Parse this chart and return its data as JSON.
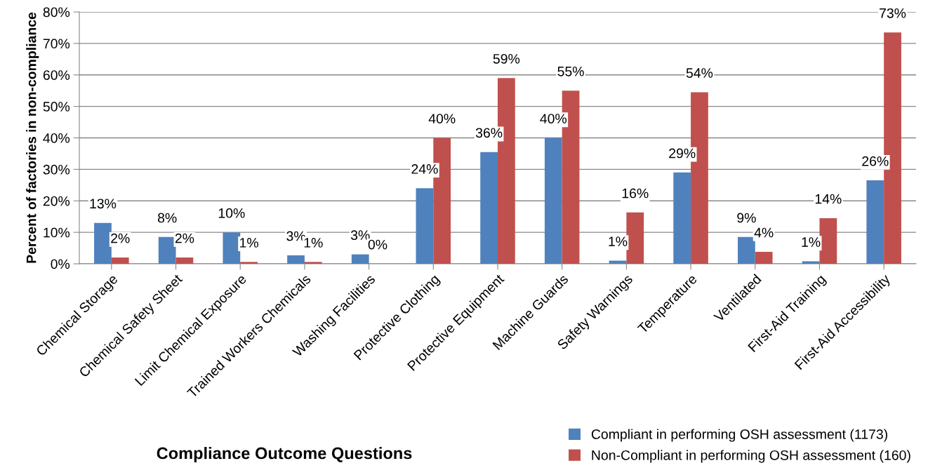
{
  "chart_data": {
    "type": "bar",
    "xlabel": "Compliance Outcome Questions",
    "ylabel": "Percent of factories in non-compliance",
    "categories": [
      "Chemical Storage",
      "Chemical Safety Sheet",
      "Limit Chemical Exposure",
      "Trained Workers Chemicals",
      "Washing Facilities",
      "Protective Clothing",
      "Protective Equipment",
      "Machine Guards",
      "Safety Warnings",
      "Temperature",
      "Ventilated",
      "First-Aid Training",
      "First-Aid Accessibility"
    ],
    "series": [
      {
        "name": "Compliant in performing OSH assessment (1173)",
        "color": "#4f81bd",
        "values": [
          13,
          8.5,
          10,
          2.7,
          3,
          24,
          35.5,
          40,
          1,
          29,
          8.5,
          0.8,
          26.5
        ],
        "value_labels": [
          "13%",
          "8%",
          "10%",
          "3%",
          "3%",
          "24%",
          "36%",
          "40%",
          "1%",
          "29%",
          "9%",
          "1%",
          "26%"
        ]
      },
      {
        "name": "Non-Compliant in performing OSH assessment (160)",
        "color": "#c0504d",
        "values": [
          2,
          2,
          0.6,
          0.6,
          0,
          40,
          59,
          55,
          16.3,
          54.5,
          3.8,
          14.5,
          73.5
        ],
        "value_labels": [
          "2%",
          "2%",
          "1%",
          "1%",
          "0%",
          "40%",
          "59%",
          "55%",
          "16%",
          "54%",
          "4%",
          "14%",
          "73%"
        ]
      }
    ],
    "ylim": [
      0,
      80
    ],
    "yticks": [
      {
        "value": 0,
        "label": "0%"
      },
      {
        "value": 10,
        "label": "10%"
      },
      {
        "value": 20,
        "label": "20%"
      },
      {
        "value": 30,
        "label": "30%"
      },
      {
        "value": 40,
        "label": "40%"
      },
      {
        "value": 50,
        "label": "50%"
      },
      {
        "value": 60,
        "label": "60%"
      },
      {
        "value": 70,
        "label": "70%"
      },
      {
        "value": 80,
        "label": "80%"
      }
    ],
    "grid": "y",
    "legend": "bottom right"
  }
}
